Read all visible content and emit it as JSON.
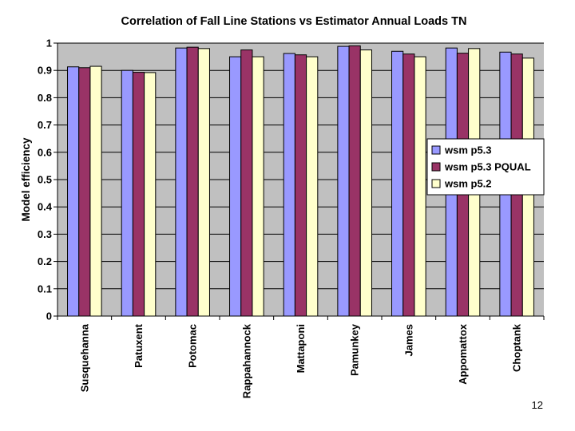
{
  "page_number": "12",
  "chart_data": {
    "type": "bar",
    "title": "Correlation of Fall Line Stations vs Estimator Annual Loads TN",
    "xlabel": "",
    "ylabel": "Model efficiency",
    "ylim": [
      0,
      1
    ],
    "yticks": [
      0,
      0.1,
      0.2,
      0.3,
      0.4,
      0.5,
      0.6,
      0.7,
      0.8,
      0.9,
      1
    ],
    "ytick_labels": [
      "0",
      "0.1",
      "0.2",
      "0.3",
      "0.4",
      "0.5",
      "0.6",
      "0.7",
      "0.8",
      "0.9",
      "1"
    ],
    "grid": true,
    "legend_position": "right",
    "categories": [
      "Susquehanna",
      "Patuxent",
      "Potomac",
      "Rappahannock",
      "Mattaponi",
      "Pamunkey",
      "James",
      "Appomattox",
      "Choptank"
    ],
    "series": [
      {
        "name": "wsm p5.3",
        "color": "#9999FF",
        "values": [
          0.913,
          0.9,
          0.982,
          0.95,
          0.962,
          0.988,
          0.97,
          0.982,
          0.967
        ]
      },
      {
        "name": "wsm p5.3 PQUAL",
        "color": "#993366",
        "values": [
          0.91,
          0.893,
          0.985,
          0.975,
          0.957,
          0.99,
          0.96,
          0.963,
          0.96
        ]
      },
      {
        "name": "wsm p5.2",
        "color": "#FFFFCC",
        "values": [
          0.915,
          0.892,
          0.98,
          0.95,
          0.95,
          0.975,
          0.95,
          0.98,
          0.945
        ]
      }
    ],
    "colors": {
      "plot_bg": "#C0C0C0",
      "grid": "#000000",
      "bar_stroke": "#000000"
    }
  }
}
